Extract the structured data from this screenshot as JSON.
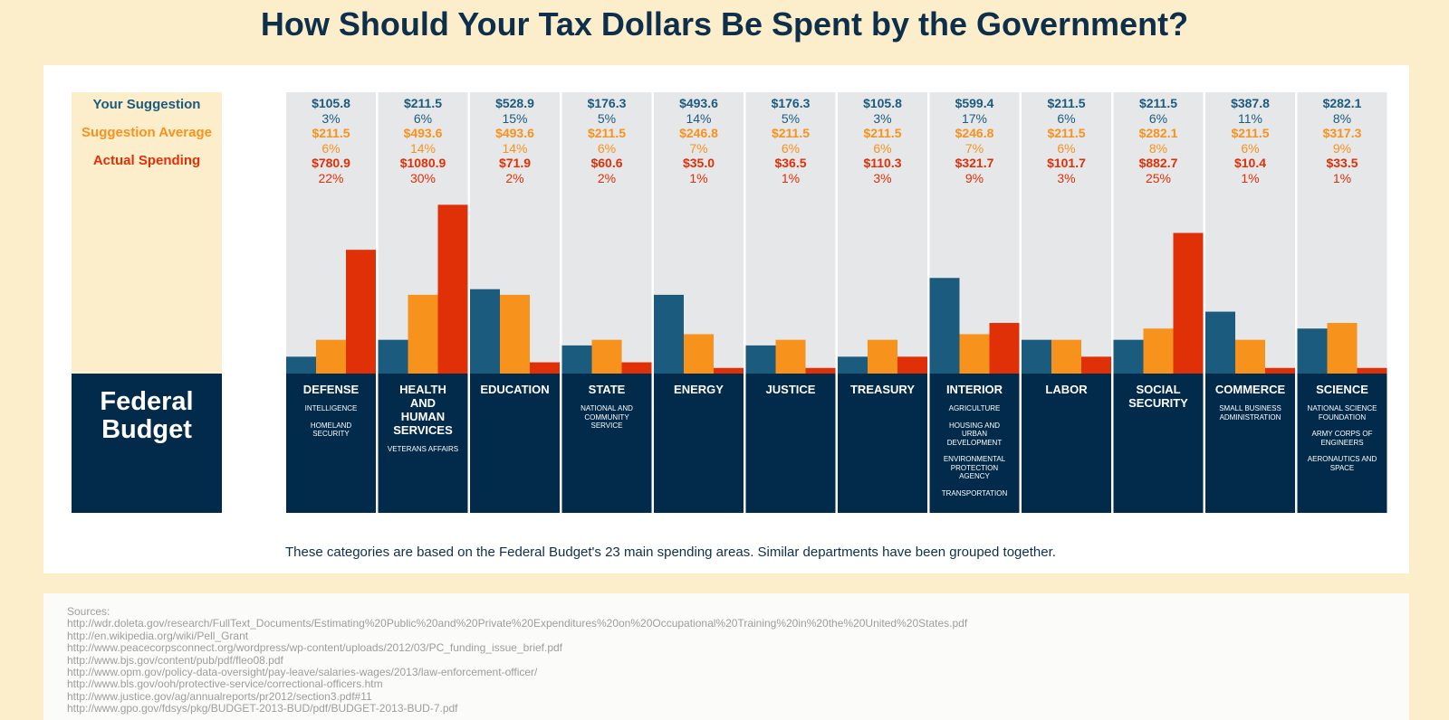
{
  "title": "How Should Your Tax Dollars Be Spent by the Government?",
  "legend": {
    "your": "Your Suggestion",
    "average": "Suggestion Average",
    "actual": "Actual Spending"
  },
  "colors": {
    "your": "#1b5b7e",
    "average": "#f7921c",
    "actual": "#e03008",
    "panel": "#022a4a",
    "chart_bg": "#e6e7e8",
    "legend_bg": "#fdeecb"
  },
  "federal_label": [
    "Federal",
    "Budget"
  ],
  "chart_data": {
    "type": "bar",
    "title": "How Should Your Tax Dollars Be Spent by the Government?",
    "categories": [
      "DEFENSE",
      "HEALTH AND HUMAN SERVICES",
      "EDUCATION",
      "STATE",
      "ENERGY",
      "JUSTICE",
      "TREASURY",
      "INTERIOR",
      "LABOR",
      "SOCIAL SECURITY",
      "COMMERCE",
      "SCIENCE"
    ],
    "series": [
      {
        "name": "Your Suggestion",
        "values": [
          3,
          6,
          15,
          5,
          14,
          5,
          3,
          17,
          6,
          6,
          11,
          8
        ]
      },
      {
        "name": "Suggestion Average",
        "values": [
          6,
          14,
          14,
          6,
          7,
          6,
          6,
          7,
          6,
          8,
          6,
          9
        ]
      },
      {
        "name": "Actual Spending",
        "values": [
          22,
          30,
          2,
          2,
          1,
          1,
          3,
          9,
          3,
          25,
          1,
          1
        ]
      }
    ],
    "xlabel": "",
    "ylabel": "",
    "ylim": [
      0,
      50
    ]
  },
  "departments": [
    {
      "name": [
        "DEFENSE"
      ],
      "sub": [
        "INTELLIGENCE",
        "HOMELAND SECURITY"
      ],
      "your": "$105.8",
      "your_pct": "3%",
      "avg": "$211.5",
      "avg_pct": "6%",
      "actual": "$780.9",
      "actual_pct": "22%"
    },
    {
      "name": [
        "HEALTH",
        "AND",
        "HUMAN",
        "SERVICES"
      ],
      "sub": [
        "VETERANS AFFAIRS"
      ],
      "your": "$211.5",
      "your_pct": "6%",
      "avg": "$493.6",
      "avg_pct": "14%",
      "actual": "$1080.9",
      "actual_pct": "30%"
    },
    {
      "name": [
        "EDUCATION"
      ],
      "sub": [],
      "your": "$528.9",
      "your_pct": "15%",
      "avg": "$493.6",
      "avg_pct": "14%",
      "actual": "$71.9",
      "actual_pct": "2%"
    },
    {
      "name": [
        "STATE"
      ],
      "sub": [
        "NATIONAL AND COMMUNITY SERVICE"
      ],
      "your": "$176.3",
      "your_pct": "5%",
      "avg": "$211.5",
      "avg_pct": "6%",
      "actual": "$60.6",
      "actual_pct": "2%"
    },
    {
      "name": [
        "ENERGY"
      ],
      "sub": [],
      "your": "$493.6",
      "your_pct": "14%",
      "avg": "$246.8",
      "avg_pct": "7%",
      "actual": "$35.0",
      "actual_pct": "1%"
    },
    {
      "name": [
        "JUSTICE"
      ],
      "sub": [],
      "your": "$176.3",
      "your_pct": "5%",
      "avg": "$211.5",
      "avg_pct": "6%",
      "actual": "$36.5",
      "actual_pct": "1%"
    },
    {
      "name": [
        "TREASURY"
      ],
      "sub": [],
      "your": "$105.8",
      "your_pct": "3%",
      "avg": "$211.5",
      "avg_pct": "6%",
      "actual": "$110.3",
      "actual_pct": "3%"
    },
    {
      "name": [
        "INTERIOR"
      ],
      "sub": [
        "AGRICULTURE",
        "HOUSING AND URBAN DEVELOPMENT",
        "ENVIRONMENTAL PROTECTION AGENCY",
        "TRANSPORTATION"
      ],
      "your": "$599.4",
      "your_pct": "17%",
      "avg": "$246.8",
      "avg_pct": "7%",
      "actual": "$321.7",
      "actual_pct": "9%"
    },
    {
      "name": [
        "LABOR"
      ],
      "sub": [],
      "your": "$211.5",
      "your_pct": "6%",
      "avg": "$211.5",
      "avg_pct": "6%",
      "actual": "$101.7",
      "actual_pct": "3%"
    },
    {
      "name": [
        "SOCIAL",
        "SECURITY"
      ],
      "sub": [],
      "your": "$211.5",
      "your_pct": "6%",
      "avg": "$282.1",
      "avg_pct": "8%",
      "actual": "$882.7",
      "actual_pct": "25%"
    },
    {
      "name": [
        "COMMERCE"
      ],
      "sub": [
        "SMALL BUSINESS ADMINISTRATION"
      ],
      "your": "$387.8",
      "your_pct": "11%",
      "avg": "$211.5",
      "avg_pct": "6%",
      "actual": "$10.4",
      "actual_pct": "1%"
    },
    {
      "name": [
        "SCIENCE"
      ],
      "sub": [
        "NATIONAL SCIENCE FOUNDATION",
        "ARMY CORPS OF ENGINEERS",
        "AERONAUTICS AND SPACE"
      ],
      "your": "$282.1",
      "your_pct": "8%",
      "avg": "$317.3",
      "avg_pct": "9%",
      "actual": "$33.5",
      "actual_pct": "1%"
    }
  ],
  "note": "These categories are based on the Federal Budget's 23 main spending areas. Similar departments have been grouped together.",
  "sources": {
    "label": "Sources:",
    "urls": [
      "http://wdr.doleta.gov/research/FullText_Documents/Estimating%20Public%20and%20Private%20Expenditures%20on%20Occupational%20Training%20in%20the%20United%20States.pdf",
      "http://en.wikipedia.org/wiki/Pell_Grant",
      "http://www.peacecorpsconnect.org/wordpress/wp-content/uploads/2012/03/PC_funding_issue_brief.pdf",
      "http://www.bjs.gov/content/pub/pdf/fleo08.pdf",
      "http://www.opm.gov/policy-data-oversight/pay-leave/salaries-wages/2013/law-enforcement-officer/",
      "http://www.bls.gov/ooh/protective-service/correctional-officers.htm",
      "http://www.justice.gov/ag/annualreports/pr2012/section3.pdf#11",
      "http://www.gpo.gov/fdsys/pkg/BUDGET-2013-BUD/pdf/BUDGET-2013-BUD-7.pdf"
    ]
  }
}
